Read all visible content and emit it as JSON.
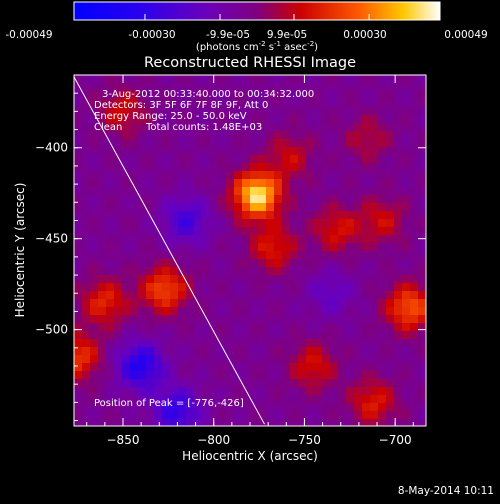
{
  "colorbar": {
    "ticks": [
      "-0.00049",
      "-0.00030",
      "-9.9e-05",
      "9.9e-05",
      "0.00030",
      "0.00049"
    ],
    "tick_values": [
      -0.00049,
      -0.0003,
      -9.9e-05,
      9.9e-05,
      0.0003,
      0.00049
    ],
    "range": [
      -0.00049,
      0.00049
    ],
    "units_prefix": "(photons cm",
    "units_sup1": "-2",
    "units_mid1": " s",
    "units_sup2": "-1",
    "units_mid2": " asec",
    "units_sup3": "-2",
    "units_suffix": ")"
  },
  "chart_data": {
    "type": "heatmap",
    "title": "Reconstructed RHESSI Image",
    "xlabel": "Heliocentric X (arcsec)",
    "ylabel": "Heliocentric Y (arcsec)",
    "xlim": [
      -877,
      -683
    ],
    "ylim": [
      -553,
      -360
    ],
    "xticks": [
      -850,
      -800,
      -750,
      -700
    ],
    "yticks": [
      -400,
      -450,
      -500
    ],
    "xtick_labels": [
      "−850",
      "−800",
      "−750",
      "−700"
    ],
    "ytick_labels": [
      "−400",
      "−450",
      "−500"
    ],
    "limb_line": [
      [
        -877,
        -361
      ],
      [
        -772,
        -552
      ]
    ],
    "sources": [
      {
        "x": -776,
        "y": -426,
        "value": 0.00049
      },
      {
        "x": -827,
        "y": -478,
        "value": 0.00028
      },
      {
        "x": -860,
        "y": -485,
        "value": 0.00022
      },
      {
        "x": -692,
        "y": -488,
        "value": 0.0003
      },
      {
        "x": -767,
        "y": -455,
        "value": 0.0002
      },
      {
        "x": -732,
        "y": -445,
        "value": 0.00018
      },
      {
        "x": -707,
        "y": -440,
        "value": 0.00016
      },
      {
        "x": -875,
        "y": -515,
        "value": 0.00025
      },
      {
        "x": -745,
        "y": -520,
        "value": 0.00018
      },
      {
        "x": -712,
        "y": -540,
        "value": 0.0002
      },
      {
        "x": -758,
        "y": -405,
        "value": 0.00015
      },
      {
        "x": -850,
        "y": -380,
        "value": 0.00016
      },
      {
        "x": -715,
        "y": -395,
        "value": 0.00012
      },
      {
        "x": -840,
        "y": -520,
        "value": -0.0003
      },
      {
        "x": -815,
        "y": -440,
        "value": -0.0002
      },
      {
        "x": -735,
        "y": -480,
        "value": -0.00012
      },
      {
        "x": -820,
        "y": -545,
        "value": -0.00025
      }
    ],
    "legend": [
      "3-Aug-2012 00:33:40.000 to 00:34:32.000",
      "Detectors: 3F 5F 6F 7F 8F 9F, Att 0",
      "Energy Range: 25.0 - 50.0 keV",
      "Clean",
      "Total counts: 1.48E+03"
    ],
    "peak_label": "Position of Peak = [-776,-426]",
    "grid": false
  },
  "footer": {
    "date": "8-May-2014 10:11"
  }
}
